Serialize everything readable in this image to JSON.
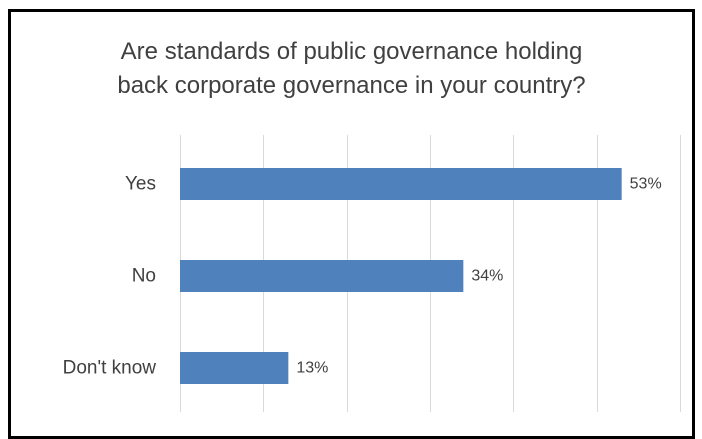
{
  "chart_data": {
    "type": "bar",
    "orientation": "horizontal",
    "title": "Are standards of public governance holding back corporate governance in your country?",
    "title_lines": [
      "Are standards of public governance holding",
      "back corporate governance in your country?"
    ],
    "categories": [
      "Yes",
      "No",
      "Don't know"
    ],
    "values": [
      53,
      34,
      13
    ],
    "value_labels": [
      "53%",
      "34%",
      "13%"
    ],
    "unit": "%",
    "xlim": [
      0,
      60
    ],
    "x_tick_step": 10,
    "grid": true,
    "legend": "none",
    "bar_color": "#4F81BD",
    "grid_color": "#D9D9D9",
    "text_color": "#404040"
  }
}
